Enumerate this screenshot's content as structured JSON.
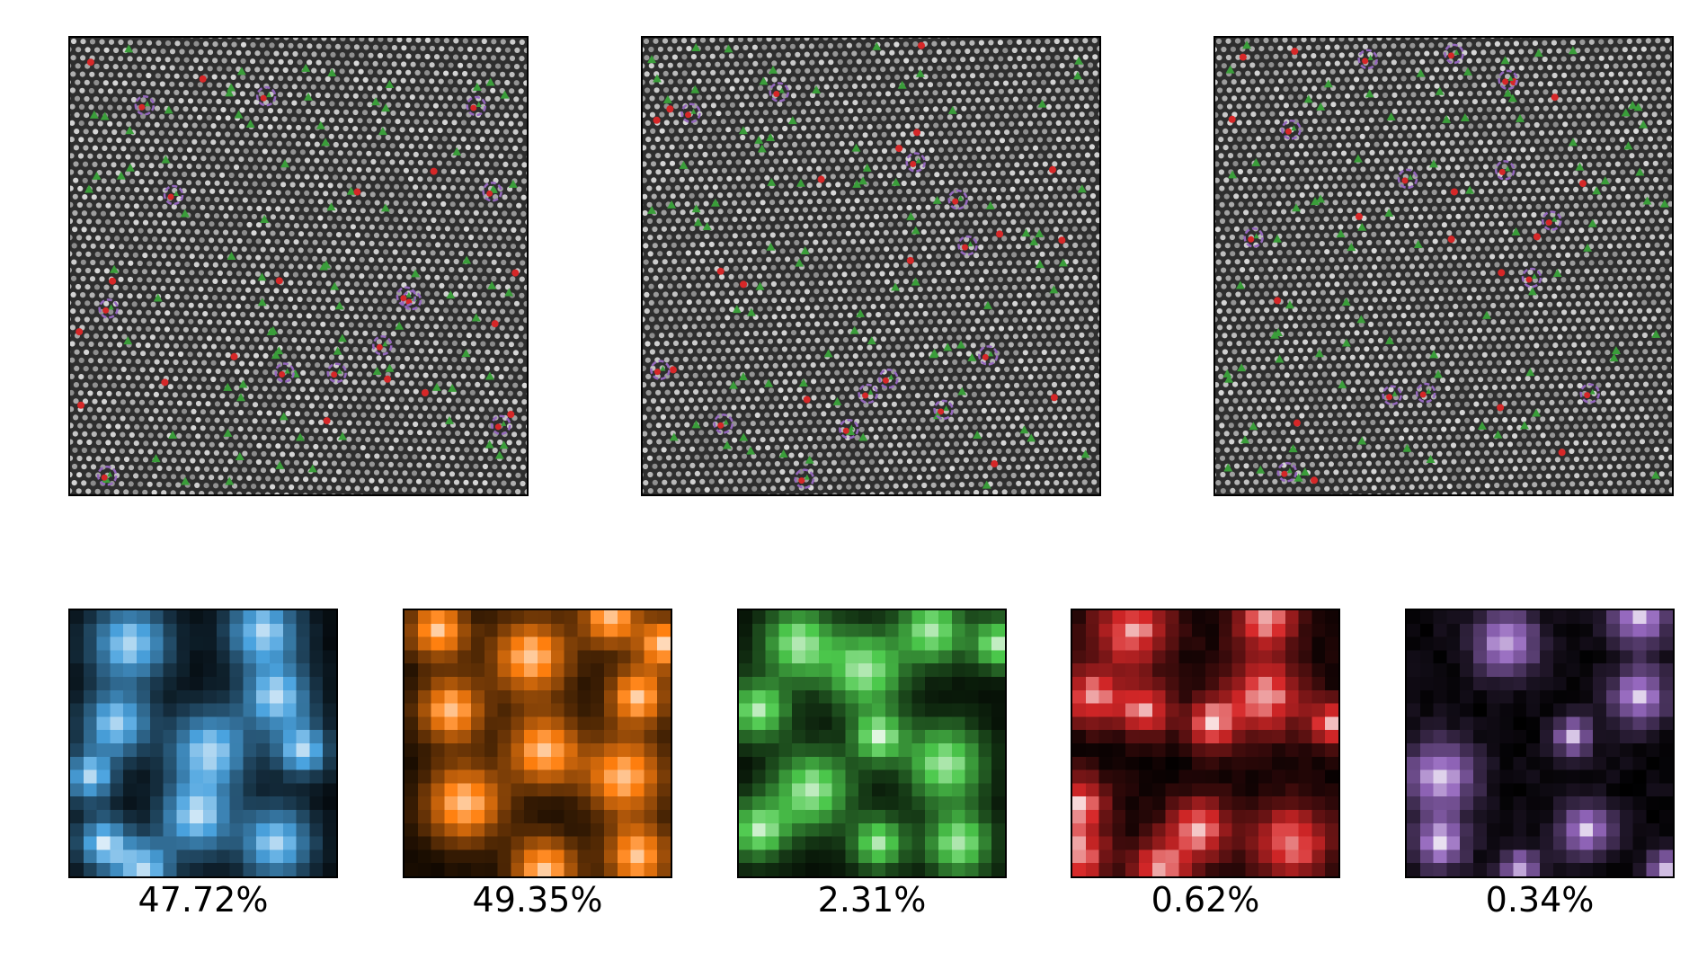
{
  "colors": {
    "background": "#ffffff",
    "lattice_bg": "#2e2e2e",
    "lattice_atom": "#d8d8d8",
    "green_marker": "#3a9e3a",
    "red_marker": "#d62728",
    "purple_marker": "#9467bd",
    "cluster_blue": "#4aa3df",
    "cluster_orange": "#ff7f0e",
    "cluster_green": "#4cc94c",
    "cluster_red": "#d62728",
    "cluster_purple": "#9467bd"
  },
  "micrographs": [
    {
      "name": "micrograph-1",
      "markers": [
        "green-triangle",
        "red-dot",
        "purple-circle"
      ]
    },
    {
      "name": "micrograph-2",
      "markers": [
        "green-triangle",
        "red-dot",
        "purple-circle"
      ]
    },
    {
      "name": "micrograph-3",
      "markers": [
        "green-triangle",
        "red-dot",
        "purple-circle"
      ]
    }
  ],
  "clusters": [
    {
      "name": "cluster-blue",
      "color": "#4aa3df",
      "fraction_label": "47.72%",
      "fraction": 47.72
    },
    {
      "name": "cluster-orange",
      "color": "#ff7f0e",
      "fraction_label": "49.35%",
      "fraction": 49.35
    },
    {
      "name": "cluster-green",
      "color": "#4cc94c",
      "fraction_label": "2.31%",
      "fraction": 2.31
    },
    {
      "name": "cluster-red",
      "color": "#d62728",
      "fraction_label": "0.62%",
      "fraction": 0.62
    },
    {
      "name": "cluster-purple",
      "color": "#9467bd",
      "fraction_label": "0.34%",
      "fraction": 0.34
    }
  ]
}
